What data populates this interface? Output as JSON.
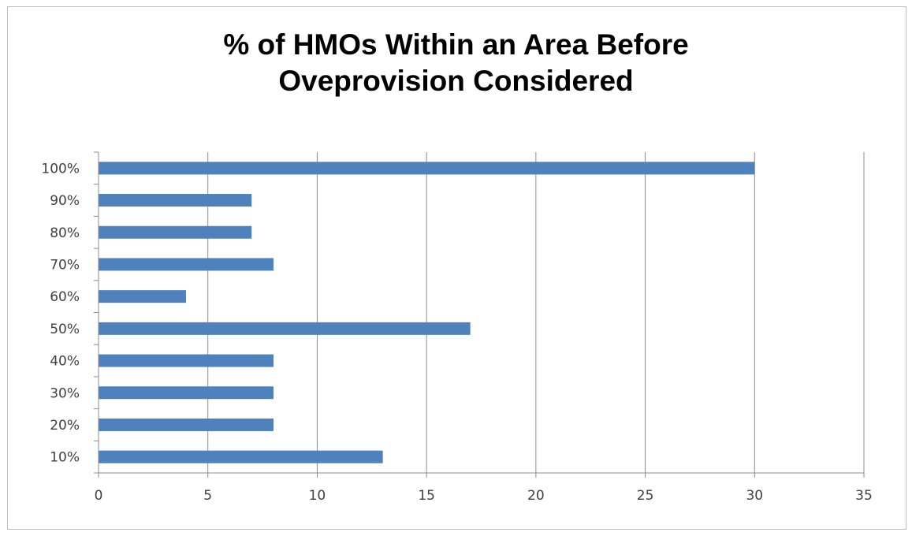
{
  "chart_data": {
    "type": "bar",
    "orientation": "horizontal",
    "title_lines": [
      "% of HMOs Within an Area Before",
      "Oveprovision Considered"
    ],
    "xlabel": "",
    "ylabel": "",
    "categories": [
      "10%",
      "20%",
      "30%",
      "40%",
      "50%",
      "60%",
      "70%",
      "80%",
      "90%",
      "100%"
    ],
    "values": [
      13,
      8,
      8,
      8,
      17,
      4,
      8,
      7,
      7,
      30
    ],
    "xlim": [
      0,
      35
    ],
    "xticks": [
      "0",
      "5",
      "10",
      "15",
      "20",
      "25",
      "30",
      "35"
    ],
    "grid": "vertical",
    "legend": "none",
    "bar_color": "#4f81bd"
  }
}
